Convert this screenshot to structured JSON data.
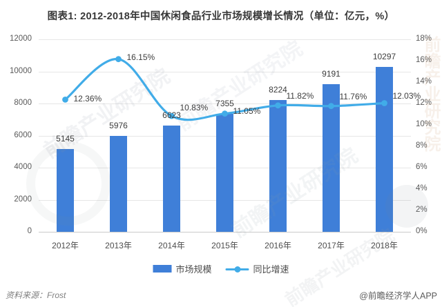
{
  "title": "图表1: 2012-2018年中国休闲食品行业市场规模增长情况（单位：亿元，%）",
  "chart_data": {
    "type": "bar+line",
    "categories": [
      "2012年",
      "2013年",
      "2014年",
      "2015年",
      "2016年",
      "2017年",
      "2018年"
    ],
    "series": [
      {
        "name": "市场规模",
        "type": "bar",
        "axis": "left",
        "unit": "亿元",
        "color": "#3F7FD8",
        "values": [
          5145,
          5976,
          6623,
          7355,
          8224,
          9191,
          10297
        ]
      },
      {
        "name": "同比增速",
        "type": "line",
        "axis": "right",
        "unit": "%",
        "color": "#41ACE8",
        "values": [
          12.36,
          16.15,
          10.83,
          11.05,
          11.82,
          11.76,
          12.03
        ],
        "point_labels": [
          "12.36%",
          "16.15%",
          "10.83%",
          "11.05%",
          "11.82%",
          "11.76%",
          "12.03%"
        ]
      }
    ],
    "left_axis": {
      "min": 0,
      "max": 12000,
      "step": 2000,
      "tick_labels": [
        "12000",
        "10000",
        "8000",
        "6000",
        "4000",
        "2000",
        "0"
      ]
    },
    "right_axis": {
      "min": 0,
      "max": 18,
      "step": 2,
      "tick_labels": [
        "18%",
        "16%",
        "14%",
        "12%",
        "10%",
        "8%",
        "6%",
        "4%",
        "2%",
        "0%"
      ]
    },
    "grid": true,
    "legend_position": "bottom"
  },
  "footer": {
    "source": "资料来源：Frost",
    "credit": "@前瞻经济学人APP"
  },
  "watermark": {
    "text": "前瞻产业研究院"
  }
}
